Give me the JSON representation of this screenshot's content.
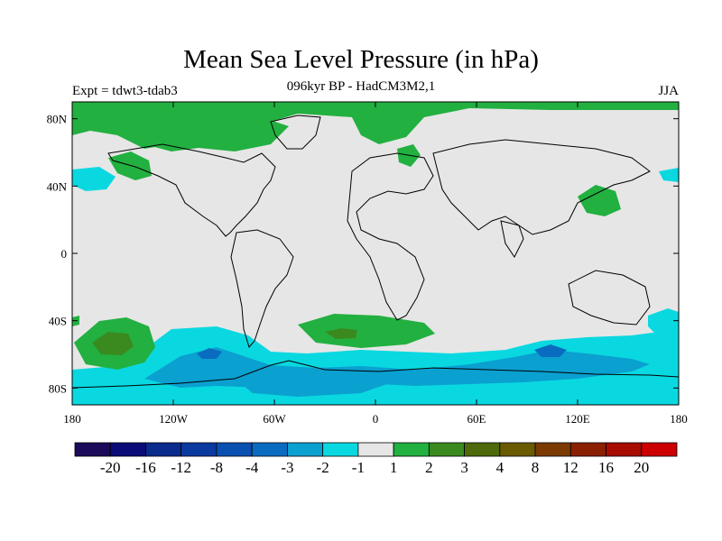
{
  "title": "Mean Sea Level Pressure (in hPa)",
  "subtitle": "096kyr BP - HadCM3M2,1",
  "left_label": "Expt = tdwt3-tdab3",
  "right_label": "JJA",
  "map": {
    "lon_range": [
      -180,
      180
    ],
    "lat_range": [
      -90,
      90
    ],
    "x_ticks": [
      {
        "value": -180,
        "label": "180"
      },
      {
        "value": -120,
        "label": "120W"
      },
      {
        "value": -60,
        "label": "60W"
      },
      {
        "value": 0,
        "label": "0"
      },
      {
        "value": 60,
        "label": "60E"
      },
      {
        "value": 120,
        "label": "120E"
      },
      {
        "value": 180,
        "label": "180"
      }
    ],
    "y_ticks": [
      {
        "value": 80,
        "label": "80N"
      },
      {
        "value": 40,
        "label": "40N"
      },
      {
        "value": 0,
        "label": "0"
      },
      {
        "value": -40,
        "label": "40S"
      },
      {
        "value": -80,
        "label": "80S"
      }
    ]
  },
  "colorbar": {
    "colors": [
      "#1c0a5a",
      "#0c0c78",
      "#0a2a8c",
      "#0a3aa0",
      "#0a50b0",
      "#0a6cc0",
      "#0aa0d0",
      "#0ad8e0",
      "#e6e6e6",
      "#22b040",
      "#3a8a20",
      "#4e6a0a",
      "#6a5a00",
      "#7a3a00",
      "#8a2000",
      "#a80c00",
      "#cc0000"
    ],
    "labels": [
      "-20",
      "-16",
      "-12",
      "-8",
      "-4",
      "-3",
      "-2",
      "-1",
      "1",
      "2",
      "3",
      "4",
      "8",
      "12",
      "16",
      "20"
    ]
  }
}
